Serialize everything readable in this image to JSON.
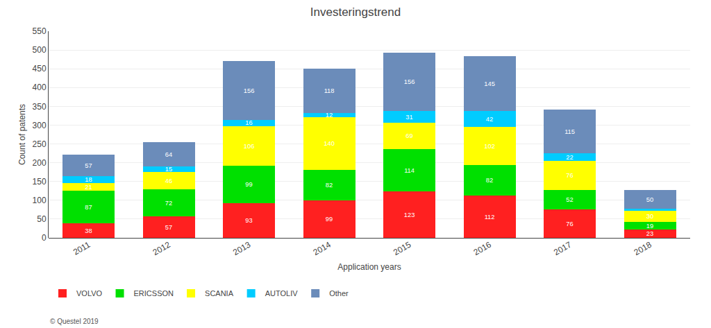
{
  "chart_data": {
    "type": "bar",
    "stacked": true,
    "title": "Investeringstrend",
    "xlabel": "Application years",
    "ylabel": "Count of patents",
    "categories": [
      "2011",
      "2012",
      "2013",
      "2014",
      "2015",
      "2016",
      "2017",
      "2018"
    ],
    "series": [
      {
        "name": "VOLVO",
        "color": "#ff2020",
        "values": [
          38,
          57,
          93,
          99,
          123,
          112,
          76,
          23
        ]
      },
      {
        "name": "ERICSSON",
        "color": "#00e000",
        "values": [
          87,
          72,
          99,
          82,
          114,
          82,
          52,
          19
        ]
      },
      {
        "name": "SCANIA",
        "color": "#ffff00",
        "values": [
          21,
          46,
          106,
          140,
          69,
          102,
          76,
          30
        ]
      },
      {
        "name": "AUTOLIV",
        "color": "#00ccff",
        "values": [
          18,
          15,
          16,
          12,
          31,
          42,
          22,
          5
        ],
        "value_labels": [
          "18",
          "15",
          "16",
          "12",
          "31",
          "42",
          "22",
          null
        ]
      },
      {
        "name": "Other",
        "color": "#6b8cba",
        "values": [
          57,
          64,
          156,
          118,
          156,
          145,
          115,
          50
        ]
      }
    ],
    "ylim": [
      0,
      550
    ],
    "yticks": [
      0,
      50,
      100,
      150,
      200,
      250,
      300,
      350,
      400,
      450,
      500,
      550
    ],
    "grid": true,
    "legend": "bottom",
    "data_labels": true,
    "annotations": [
      {
        "text": "© Questel 2019"
      }
    ]
  }
}
